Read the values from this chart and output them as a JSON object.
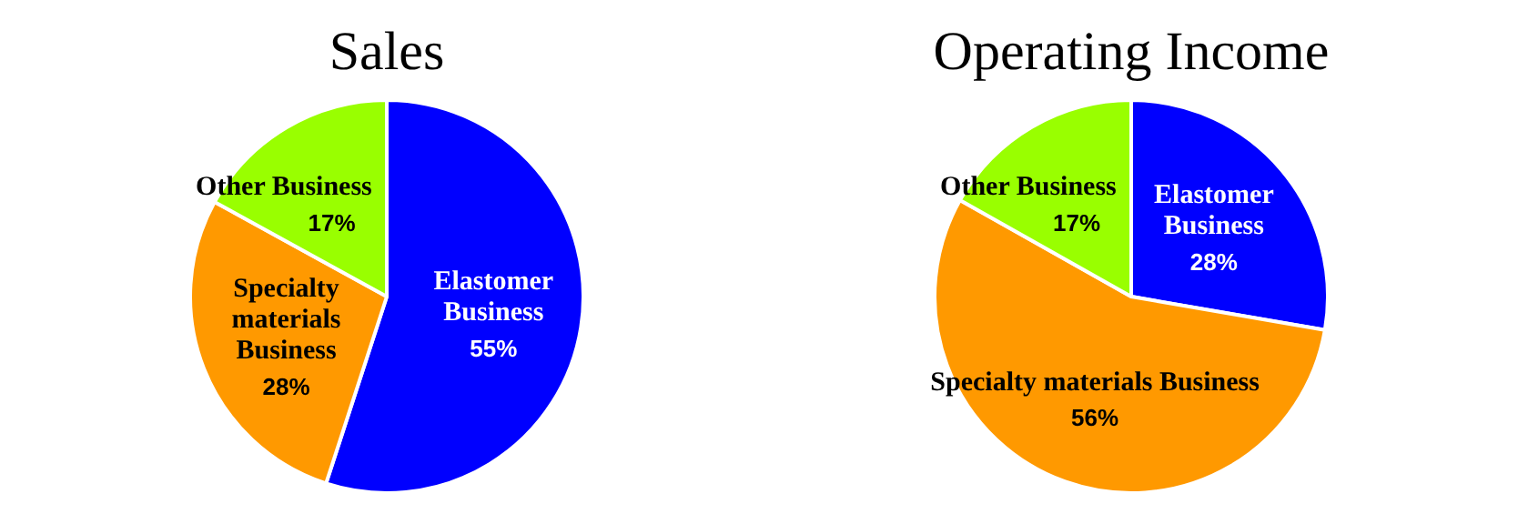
{
  "chart_data": [
    {
      "type": "pie",
      "title": "Sales",
      "categories": [
        "Elastomer Business",
        "Specialty materials Business",
        "Other Business"
      ],
      "values": [
        55,
        28,
        17
      ],
      "colors": [
        "#0000ff",
        "#ff9900",
        "#99ff00"
      ],
      "value_labels": [
        "55%",
        "28%",
        "17%"
      ],
      "legend": false
    },
    {
      "type": "pie",
      "title": "Operating Income",
      "categories": [
        "Elastomer Business",
        "Specialty materials Business",
        "Other Business"
      ],
      "values": [
        28,
        56,
        17
      ],
      "colors": [
        "#0000ff",
        "#ff9900",
        "#99ff00"
      ],
      "value_labels": [
        "28%",
        "56%",
        "17%"
      ],
      "legend": false
    }
  ]
}
